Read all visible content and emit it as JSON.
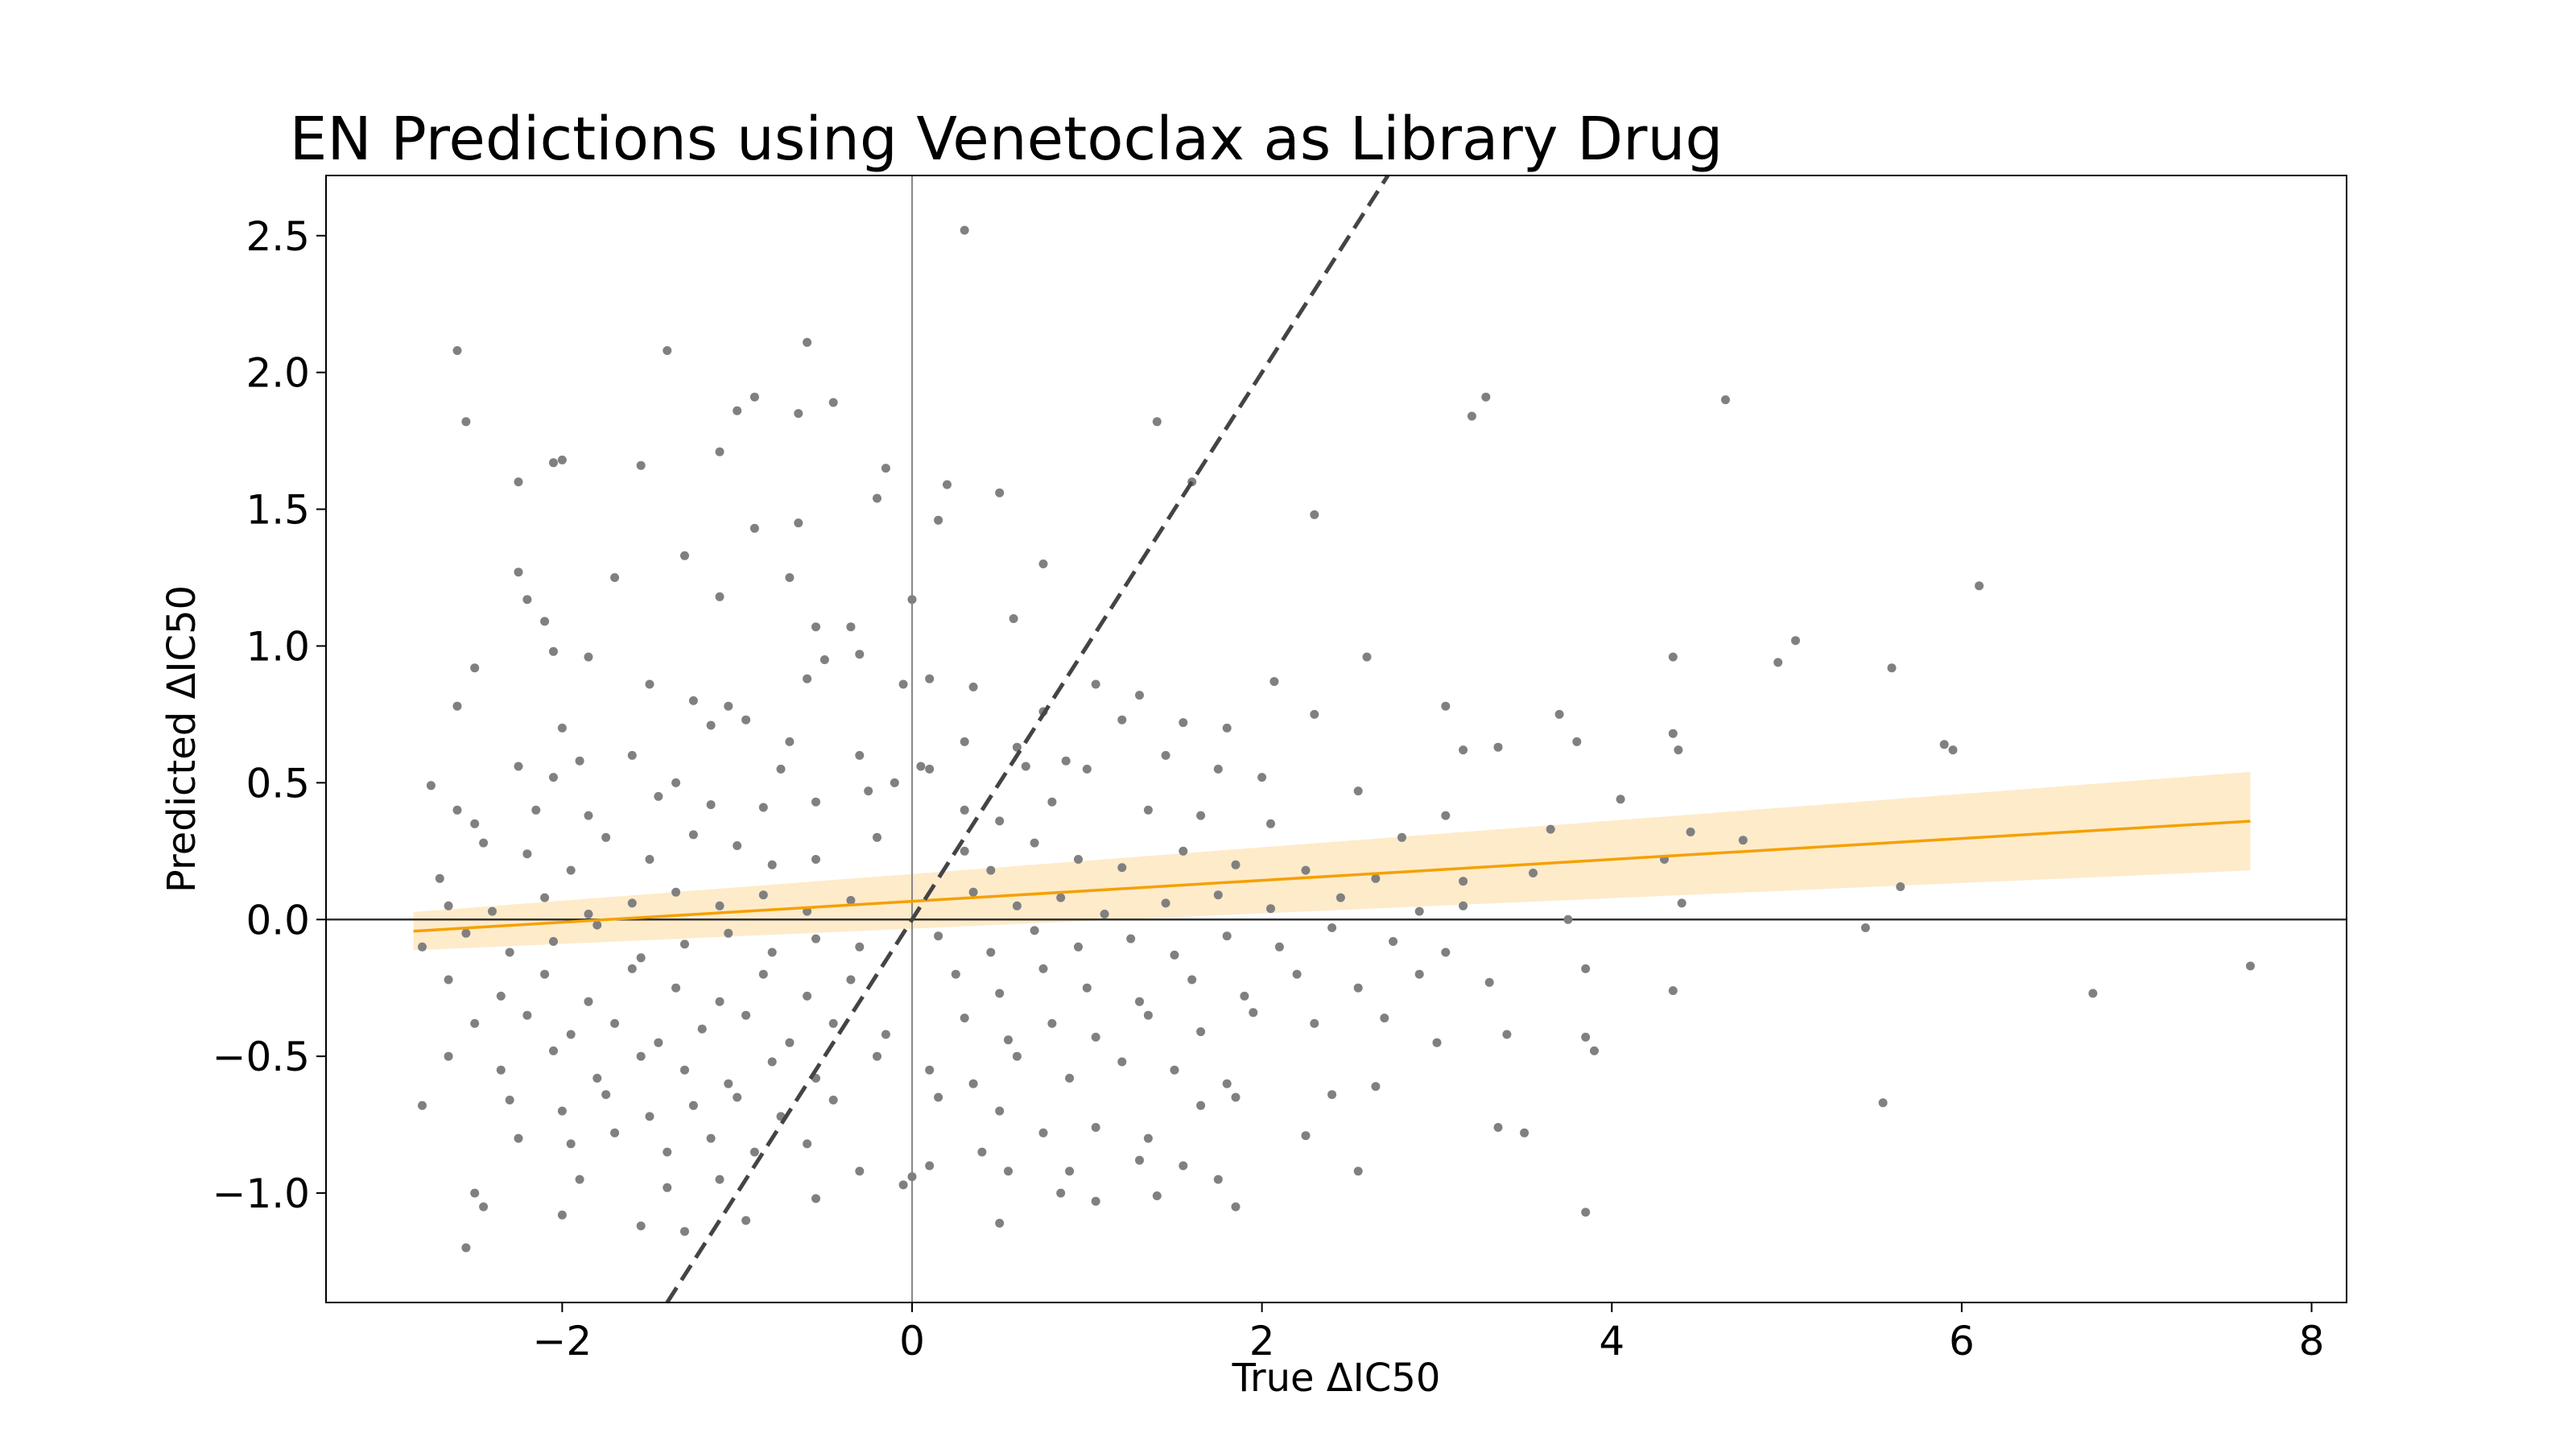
{
  "chart_data": {
    "type": "scatter",
    "title": "EN Predictions using Venetoclax as Library Drug",
    "xlabel": "True ΔIC50",
    "ylabel": "Predicted ΔIC50",
    "xlim": [
      -3.35,
      8.2
    ],
    "ylim": [
      -1.4,
      2.72
    ],
    "xticks": [
      -2,
      0,
      2,
      4,
      6,
      8
    ],
    "xtick_labels": [
      "−2",
      "0",
      "2",
      "4",
      "6",
      "8"
    ],
    "yticks": [
      -1.0,
      -0.5,
      0.0,
      0.5,
      1.0,
      1.5,
      2.0,
      2.5
    ],
    "ytick_labels": [
      "−1.0",
      "−0.5",
      "0.0",
      "0.5",
      "1.0",
      "1.5",
      "2.0",
      "2.5"
    ],
    "grid": false,
    "reference_lines": {
      "x": 0,
      "y": 0
    },
    "identity_line": {
      "slope": 1,
      "intercept": 0,
      "style": "dashed",
      "color": "#444444"
    },
    "regression": {
      "x_range": [
        -2.85,
        7.65
      ],
      "slope": 0.0383,
      "intercept": 0.0666,
      "ci_halfwidth_start": 0.07,
      "ci_halfwidth_end": 0.18,
      "line_color": "#f5a000",
      "band_color": "#fde4b8"
    },
    "marker_color": "#808080",
    "points": [
      [
        0.3,
        2.52
      ],
      [
        -2.6,
        2.08
      ],
      [
        -1.4,
        2.08
      ],
      [
        -0.6,
        2.11
      ],
      [
        -2.55,
        1.82
      ],
      [
        -0.9,
        1.91
      ],
      [
        -1.0,
        1.86
      ],
      [
        -0.65,
        1.85
      ],
      [
        -0.45,
        1.89
      ],
      [
        -1.1,
        1.71
      ],
      [
        -2.05,
        1.67
      ],
      [
        -2.0,
        1.68
      ],
      [
        -1.55,
        1.66
      ],
      [
        -2.25,
        1.6
      ],
      [
        -0.15,
        1.65
      ],
      [
        -0.2,
        1.54
      ],
      [
        0.5,
        1.56
      ],
      [
        0.2,
        1.59
      ],
      [
        0.15,
        1.46
      ],
      [
        1.4,
        1.82
      ],
      [
        1.6,
        1.6
      ],
      [
        3.2,
        1.84
      ],
      [
        3.28,
        1.91
      ],
      [
        4.65,
        1.9
      ],
      [
        2.3,
        1.48
      ],
      [
        -0.9,
        1.43
      ],
      [
        -0.65,
        1.45
      ],
      [
        -1.3,
        1.33
      ],
      [
        -2.25,
        1.27
      ],
      [
        -2.2,
        1.17
      ],
      [
        -1.7,
        1.25
      ],
      [
        -0.7,
        1.25
      ],
      [
        -1.1,
        1.18
      ],
      [
        0.0,
        1.17
      ],
      [
        0.75,
        1.3
      ],
      [
        0.58,
        1.1
      ],
      [
        -2.1,
        1.09
      ],
      [
        -0.55,
        1.07
      ],
      [
        -0.35,
        1.07
      ],
      [
        6.1,
        1.22
      ],
      [
        -2.05,
        0.98
      ],
      [
        -1.85,
        0.96
      ],
      [
        -0.5,
        0.95
      ],
      [
        -0.3,
        0.97
      ],
      [
        -0.6,
        0.88
      ],
      [
        0.1,
        0.88
      ],
      [
        -0.05,
        0.86
      ],
      [
        0.35,
        0.85
      ],
      [
        1.05,
        0.86
      ],
      [
        2.07,
        0.87
      ],
      [
        2.6,
        0.96
      ],
      [
        4.35,
        0.96
      ],
      [
        5.05,
        1.02
      ],
      [
        4.95,
        0.94
      ],
      [
        5.6,
        0.92
      ],
      [
        -2.5,
        0.92
      ],
      [
        -1.5,
        0.86
      ],
      [
        -1.25,
        0.8
      ],
      [
        -1.05,
        0.78
      ],
      [
        -0.95,
        0.73
      ],
      [
        -2.6,
        0.78
      ],
      [
        -2.0,
        0.7
      ],
      [
        1.3,
        0.82
      ],
      [
        1.55,
        0.72
      ],
      [
        0.75,
        0.76
      ],
      [
        0.3,
        0.65
      ],
      [
        0.65,
        0.56
      ],
      [
        1.2,
        0.73
      ],
      [
        1.8,
        0.7
      ],
      [
        2.3,
        0.75
      ],
      [
        3.05,
        0.78
      ],
      [
        3.7,
        0.75
      ],
      [
        4.35,
        0.68
      ],
      [
        4.38,
        0.62
      ],
      [
        5.9,
        0.64
      ],
      [
        5.95,
        0.62
      ],
      [
        -1.15,
        0.71
      ],
      [
        -0.7,
        0.65
      ],
      [
        -1.9,
        0.58
      ],
      [
        -2.25,
        0.56
      ],
      [
        -2.05,
        0.52
      ],
      [
        -1.6,
        0.6
      ],
      [
        -1.35,
        0.5
      ],
      [
        -0.75,
        0.55
      ],
      [
        -0.3,
        0.6
      ],
      [
        0.1,
        0.55
      ],
      [
        0.05,
        0.56
      ],
      [
        -0.1,
        0.5
      ],
      [
        0.6,
        0.63
      ],
      [
        0.88,
        0.58
      ],
      [
        1.0,
        0.55
      ],
      [
        1.45,
        0.6
      ],
      [
        1.75,
        0.55
      ],
      [
        2.0,
        0.52
      ],
      [
        2.55,
        0.47
      ],
      [
        3.15,
        0.62
      ],
      [
        3.35,
        0.63
      ],
      [
        3.8,
        0.65
      ],
      [
        4.05,
        0.44
      ],
      [
        4.75,
        0.29
      ],
      [
        5.65,
        0.12
      ],
      [
        -2.75,
        0.49
      ],
      [
        -2.6,
        0.4
      ],
      [
        -2.5,
        0.35
      ],
      [
        -2.15,
        0.4
      ],
      [
        -1.85,
        0.38
      ],
      [
        -1.45,
        0.45
      ],
      [
        -1.15,
        0.42
      ],
      [
        -0.85,
        0.41
      ],
      [
        -0.55,
        0.43
      ],
      [
        -0.25,
        0.47
      ],
      [
        0.3,
        0.4
      ],
      [
        0.5,
        0.36
      ],
      [
        0.8,
        0.43
      ],
      [
        1.35,
        0.4
      ],
      [
        1.65,
        0.38
      ],
      [
        2.05,
        0.35
      ],
      [
        2.8,
        0.3
      ],
      [
        3.05,
        0.38
      ],
      [
        3.65,
        0.33
      ],
      [
        4.45,
        0.32
      ],
      [
        -2.7,
        0.15
      ],
      [
        -2.45,
        0.28
      ],
      [
        -2.2,
        0.24
      ],
      [
        -1.95,
        0.18
      ],
      [
        -1.75,
        0.3
      ],
      [
        -1.5,
        0.22
      ],
      [
        -1.25,
        0.31
      ],
      [
        -1.0,
        0.27
      ],
      [
        -0.8,
        0.2
      ],
      [
        -0.55,
        0.22
      ],
      [
        -0.2,
        0.3
      ],
      [
        0.3,
        0.25
      ],
      [
        0.45,
        0.18
      ],
      [
        0.7,
        0.28
      ],
      [
        0.95,
        0.22
      ],
      [
        1.2,
        0.19
      ],
      [
        1.55,
        0.25
      ],
      [
        1.85,
        0.2
      ],
      [
        2.25,
        0.18
      ],
      [
        2.65,
        0.15
      ],
      [
        3.15,
        0.14
      ],
      [
        3.55,
        0.17
      ],
      [
        4.3,
        0.22
      ],
      [
        -2.65,
        0.05
      ],
      [
        -2.4,
        0.03
      ],
      [
        -2.1,
        0.08
      ],
      [
        -1.85,
        0.02
      ],
      [
        -1.6,
        0.06
      ],
      [
        -1.35,
        0.1
      ],
      [
        -1.1,
        0.05
      ],
      [
        -0.85,
        0.09
      ],
      [
        -0.6,
        0.03
      ],
      [
        -0.35,
        0.07
      ],
      [
        0.35,
        0.1
      ],
      [
        0.6,
        0.05
      ],
      [
        0.85,
        0.08
      ],
      [
        1.1,
        0.02
      ],
      [
        1.45,
        0.06
      ],
      [
        1.75,
        0.09
      ],
      [
        2.05,
        0.04
      ],
      [
        2.45,
        0.08
      ],
      [
        2.9,
        0.03
      ],
      [
        3.15,
        0.05
      ],
      [
        3.75,
        0.0
      ],
      [
        4.4,
        0.06
      ],
      [
        -2.8,
        -0.1
      ],
      [
        -2.55,
        -0.05
      ],
      [
        -2.3,
        -0.12
      ],
      [
        -2.05,
        -0.08
      ],
      [
        -1.8,
        -0.02
      ],
      [
        -1.55,
        -0.14
      ],
      [
        -1.3,
        -0.09
      ],
      [
        -1.05,
        -0.05
      ],
      [
        -0.8,
        -0.12
      ],
      [
        -0.55,
        -0.07
      ],
      [
        -0.3,
        -0.1
      ],
      [
        0.15,
        -0.06
      ],
      [
        0.45,
        -0.12
      ],
      [
        0.7,
        -0.04
      ],
      [
        0.95,
        -0.1
      ],
      [
        1.25,
        -0.07
      ],
      [
        1.5,
        -0.13
      ],
      [
        1.8,
        -0.06
      ],
      [
        2.1,
        -0.1
      ],
      [
        2.4,
        -0.03
      ],
      [
        2.75,
        -0.08
      ],
      [
        3.05,
        -0.12
      ],
      [
        5.45,
        -0.03
      ],
      [
        7.65,
        -0.17
      ],
      [
        -2.65,
        -0.22
      ],
      [
        -2.35,
        -0.28
      ],
      [
        -2.1,
        -0.2
      ],
      [
        -1.85,
        -0.3
      ],
      [
        -1.6,
        -0.18
      ],
      [
        -1.35,
        -0.25
      ],
      [
        -1.1,
        -0.3
      ],
      [
        -0.85,
        -0.2
      ],
      [
        -0.6,
        -0.28
      ],
      [
        -0.35,
        -0.22
      ],
      [
        0.25,
        -0.2
      ],
      [
        0.5,
        -0.27
      ],
      [
        0.75,
        -0.18
      ],
      [
        1.0,
        -0.25
      ],
      [
        1.3,
        -0.3
      ],
      [
        1.6,
        -0.22
      ],
      [
        1.9,
        -0.28
      ],
      [
        2.2,
        -0.2
      ],
      [
        2.55,
        -0.25
      ],
      [
        2.9,
        -0.2
      ],
      [
        3.3,
        -0.23
      ],
      [
        3.85,
        -0.18
      ],
      [
        4.35,
        -0.26
      ],
      [
        6.75,
        -0.27
      ],
      [
        -2.5,
        -0.38
      ],
      [
        -2.2,
        -0.35
      ],
      [
        -1.95,
        -0.42
      ],
      [
        -1.7,
        -0.38
      ],
      [
        -1.45,
        -0.45
      ],
      [
        -1.2,
        -0.4
      ],
      [
        -0.95,
        -0.35
      ],
      [
        -0.7,
        -0.45
      ],
      [
        -0.45,
        -0.38
      ],
      [
        -0.15,
        -0.42
      ],
      [
        0.3,
        -0.36
      ],
      [
        0.55,
        -0.44
      ],
      [
        0.8,
        -0.38
      ],
      [
        1.05,
        -0.43
      ],
      [
        1.35,
        -0.35
      ],
      [
        1.65,
        -0.41
      ],
      [
        1.95,
        -0.34
      ],
      [
        2.3,
        -0.38
      ],
      [
        2.7,
        -0.36
      ],
      [
        3.0,
        -0.45
      ],
      [
        3.4,
        -0.42
      ],
      [
        3.85,
        -0.43
      ],
      [
        3.9,
        -0.48
      ],
      [
        -2.65,
        -0.5
      ],
      [
        -2.35,
        -0.55
      ],
      [
        -2.05,
        -0.48
      ],
      [
        -1.8,
        -0.58
      ],
      [
        -1.55,
        -0.5
      ],
      [
        -1.3,
        -0.55
      ],
      [
        -1.05,
        -0.6
      ],
      [
        -0.8,
        -0.52
      ],
      [
        -0.55,
        -0.58
      ],
      [
        -0.2,
        -0.5
      ],
      [
        0.1,
        -0.55
      ],
      [
        0.35,
        -0.6
      ],
      [
        0.6,
        -0.5
      ],
      [
        0.9,
        -0.58
      ],
      [
        1.2,
        -0.52
      ],
      [
        1.5,
        -0.55
      ],
      [
        1.8,
        -0.6
      ],
      [
        -2.8,
        -0.68
      ],
      [
        -2.3,
        -0.66
      ],
      [
        -2.0,
        -0.7
      ],
      [
        -1.75,
        -0.64
      ],
      [
        -1.5,
        -0.72
      ],
      [
        -1.25,
        -0.68
      ],
      [
        -1.0,
        -0.65
      ],
      [
        -0.75,
        -0.72
      ],
      [
        -0.45,
        -0.66
      ],
      [
        0.15,
        -0.65
      ],
      [
        0.5,
        -0.7
      ],
      [
        0.75,
        -0.78
      ],
      [
        1.05,
        -0.76
      ],
      [
        1.35,
        -0.8
      ],
      [
        1.65,
        -0.68
      ],
      [
        1.85,
        -0.65
      ],
      [
        2.25,
        -0.79
      ],
      [
        2.4,
        -0.64
      ],
      [
        2.65,
        -0.61
      ],
      [
        3.5,
        -0.78
      ],
      [
        3.35,
        -0.76
      ],
      [
        5.55,
        -0.67
      ],
      [
        -2.25,
        -0.8
      ],
      [
        -1.95,
        -0.82
      ],
      [
        -1.7,
        -0.78
      ],
      [
        -1.4,
        -0.85
      ],
      [
        -1.15,
        -0.8
      ],
      [
        -0.9,
        -0.85
      ],
      [
        -0.6,
        -0.82
      ],
      [
        -0.3,
        -0.92
      ],
      [
        0.1,
        -0.9
      ],
      [
        0.4,
        -0.85
      ],
      [
        0.9,
        -0.92
      ],
      [
        1.3,
        -0.88
      ],
      [
        1.55,
        -0.9
      ],
      [
        1.75,
        -0.95
      ],
      [
        2.55,
        -0.92
      ],
      [
        -1.9,
        -0.95
      ],
      [
        -1.4,
        -0.98
      ],
      [
        -1.1,
        -0.95
      ],
      [
        -0.55,
        -1.02
      ],
      [
        -0.05,
        -0.97
      ],
      [
        0.0,
        -0.94
      ],
      [
        0.55,
        -0.92
      ],
      [
        0.85,
        -1.0
      ],
      [
        1.05,
        -1.03
      ],
      [
        1.4,
        -1.01
      ],
      [
        1.85,
        -1.05
      ],
      [
        3.85,
        -1.07
      ],
      [
        -2.5,
        -1.0
      ],
      [
        -2.45,
        -1.05
      ],
      [
        -2.0,
        -1.08
      ],
      [
        -1.55,
        -1.12
      ],
      [
        -1.3,
        -1.14
      ],
      [
        -0.95,
        -1.1
      ],
      [
        -2.55,
        -1.2
      ],
      [
        0.5,
        -1.11
      ]
    ]
  }
}
